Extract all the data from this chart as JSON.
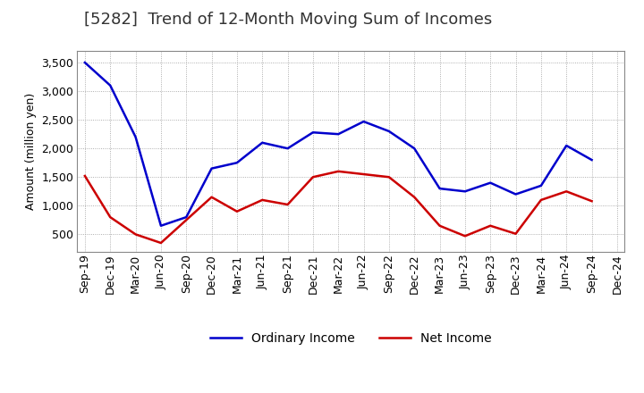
{
  "title": "[5282]  Trend of 12-Month Moving Sum of Incomes",
  "ylabel": "Amount (million yen)",
  "x_labels": [
    "Sep-19",
    "Dec-19",
    "Mar-20",
    "Jun-20",
    "Sep-20",
    "Dec-20",
    "Mar-21",
    "Jun-21",
    "Sep-21",
    "Dec-21",
    "Mar-22",
    "Jun-22",
    "Sep-22",
    "Dec-22",
    "Mar-23",
    "Jun-23",
    "Sep-23",
    "Dec-23",
    "Mar-24",
    "Jun-24",
    "Sep-24",
    "Dec-24"
  ],
  "ordinary_income": [
    3500,
    3100,
    2200,
    650,
    800,
    1650,
    1750,
    2100,
    2000,
    2280,
    2250,
    2470,
    2300,
    2000,
    1300,
    1250,
    1400,
    1200,
    1350,
    2050,
    1800,
    null
  ],
  "net_income": [
    1520,
    800,
    500,
    350,
    750,
    1150,
    900,
    1100,
    1020,
    1500,
    1600,
    1550,
    1500,
    1150,
    650,
    470,
    650,
    510,
    1100,
    1250,
    1080,
    null
  ],
  "ordinary_color": "#0000cc",
  "net_color": "#cc0000",
  "ylim": [
    200,
    3700
  ],
  "yticks": [
    500,
    1000,
    1500,
    2000,
    2500,
    3000,
    3500
  ],
  "background_color": "#ffffff",
  "grid_color": "#999999",
  "title_fontsize": 13,
  "axis_fontsize": 9,
  "tick_fontsize": 9,
  "legend_fontsize": 10
}
